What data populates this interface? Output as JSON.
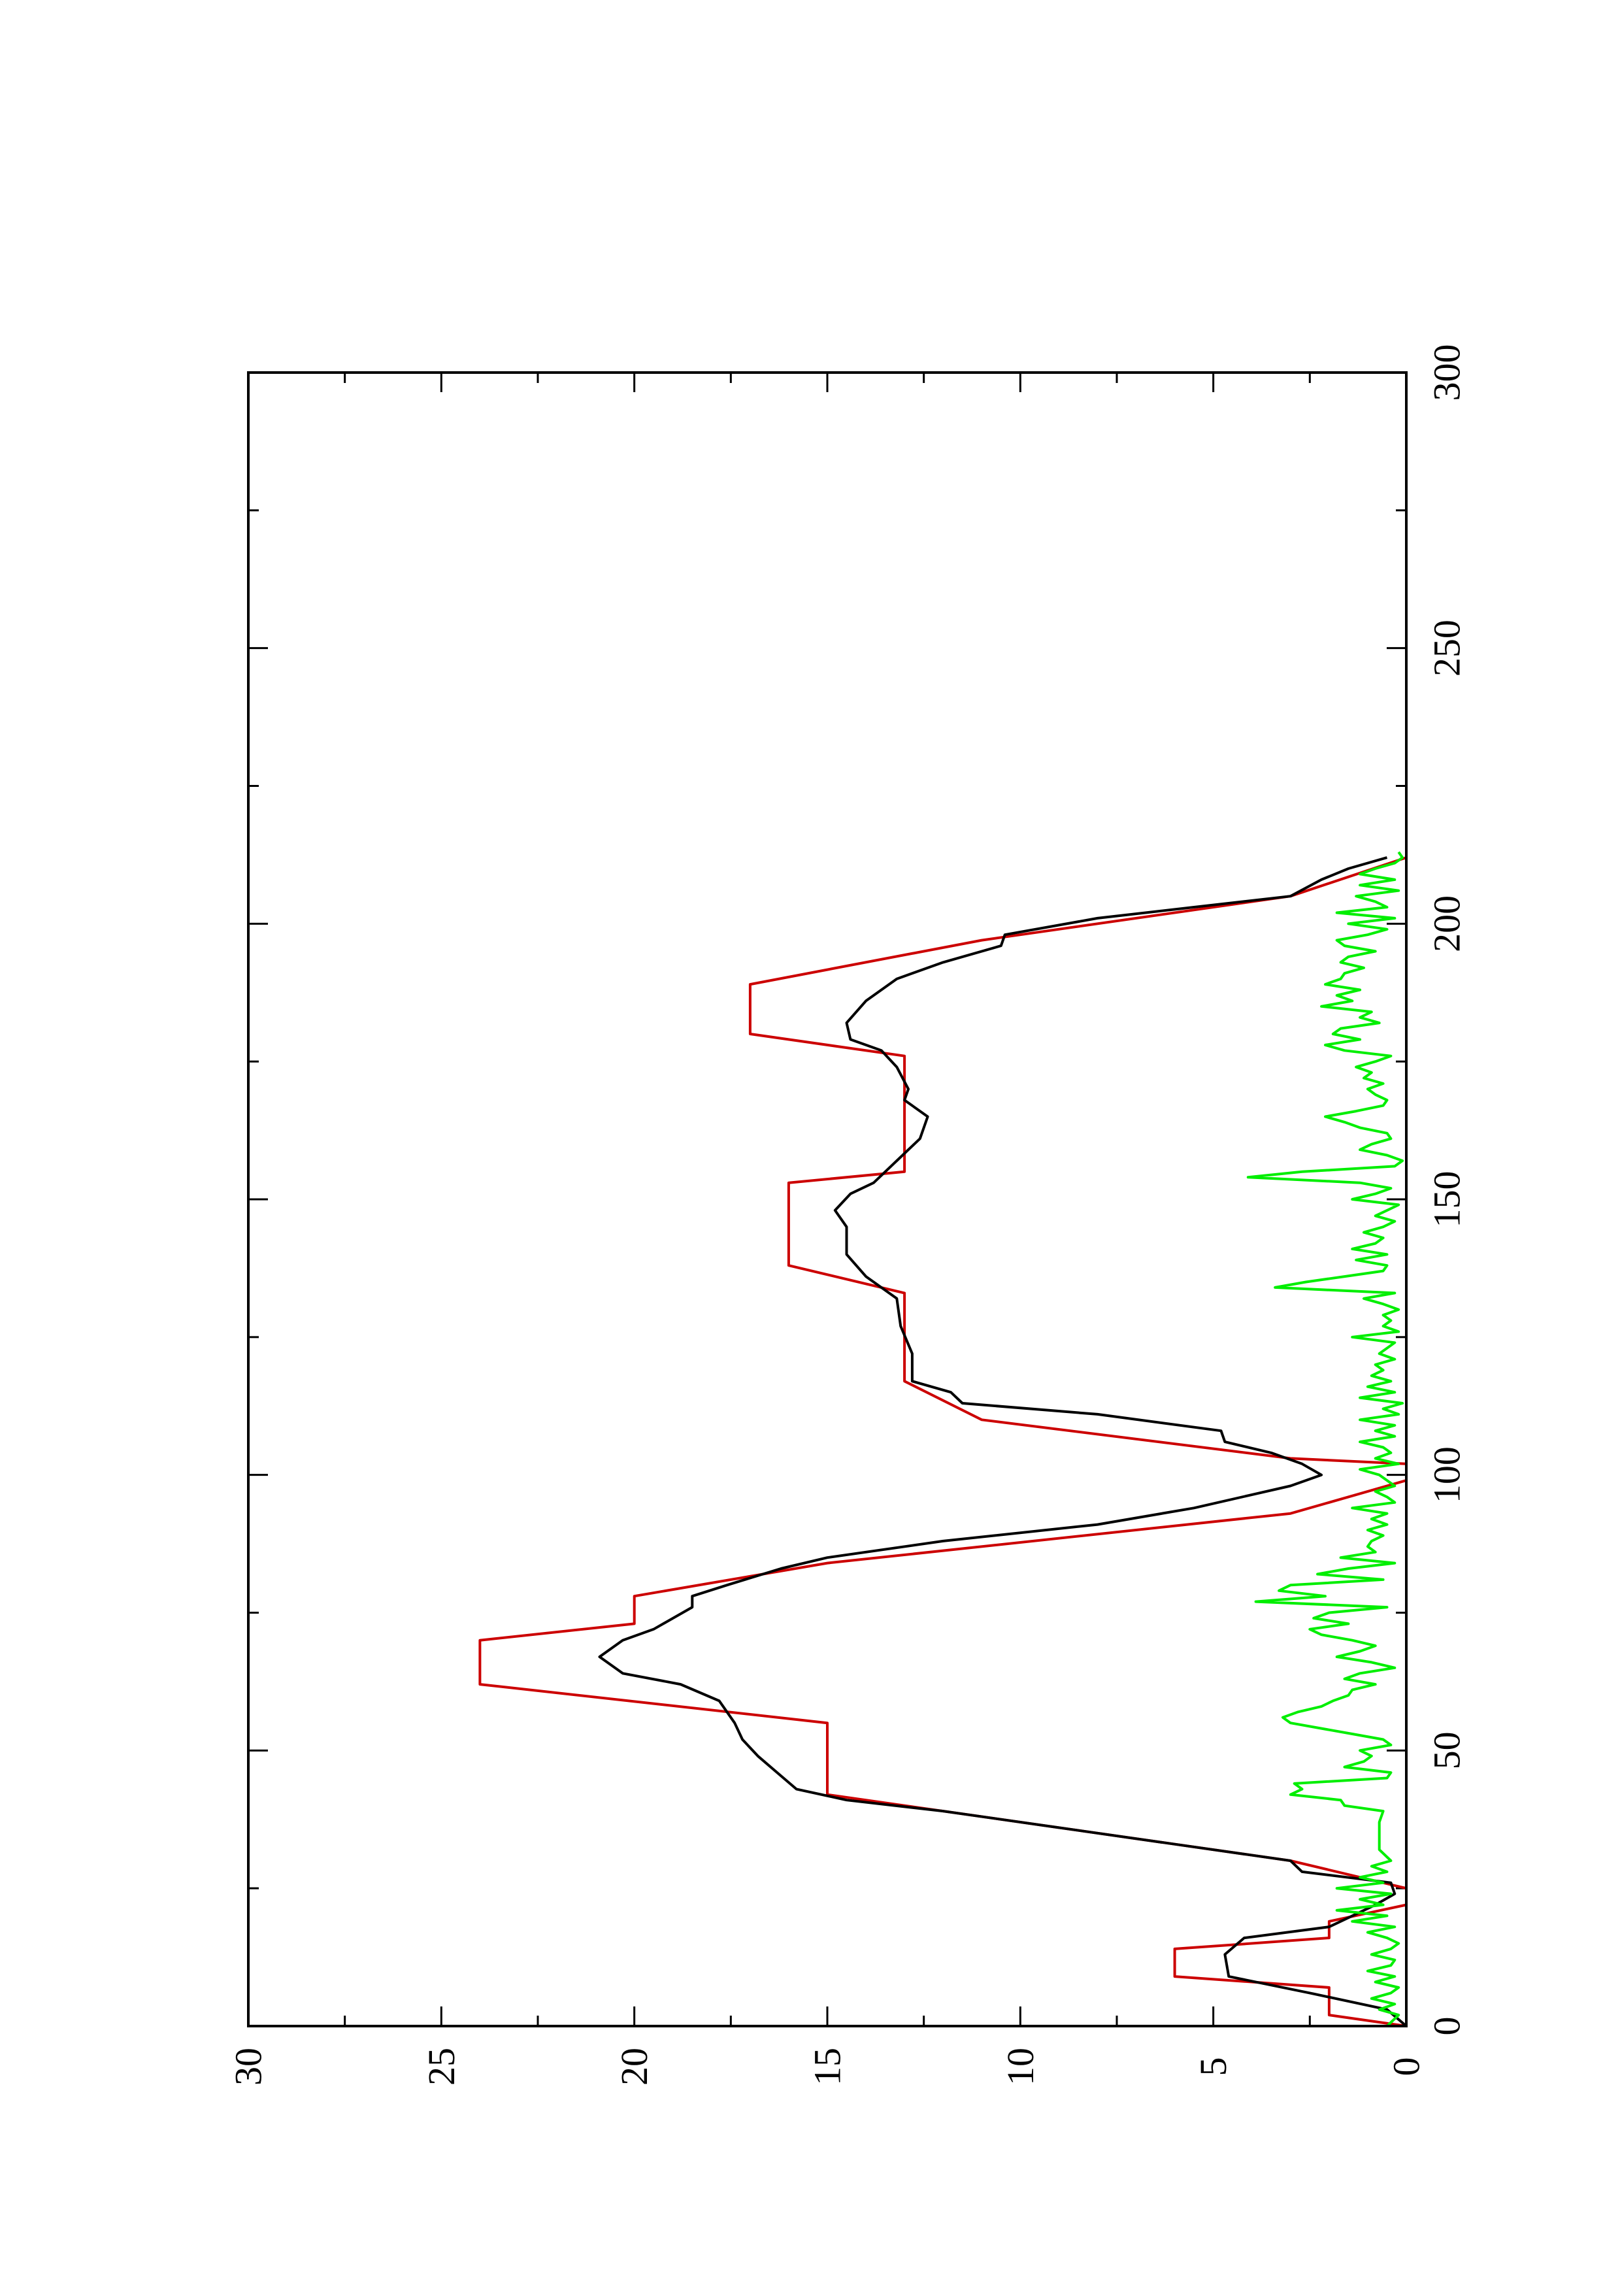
{
  "chart_data": {
    "type": "line",
    "title": "",
    "xlabel": "",
    "ylabel": "",
    "xlim": [
      0,
      300
    ],
    "ylim": [
      0,
      30
    ],
    "x_ticks": [
      0,
      50,
      100,
      150,
      200,
      250,
      300
    ],
    "y_ticks": [
      0,
      5,
      10,
      15,
      20,
      25,
      30
    ],
    "x_minor_step": 25,
    "y_minor_step": 2.5,
    "orientation": "rotated-90-ccw",
    "grid": false,
    "legend": "none",
    "series": [
      {
        "color": "#cc0000",
        "points": [
          [
            0,
            0
          ],
          [
            2,
            2
          ],
          [
            7,
            2
          ],
          [
            9,
            6
          ],
          [
            14,
            6
          ],
          [
            16,
            2
          ],
          [
            19,
            2
          ],
          [
            22,
            0
          ],
          [
            25,
            0
          ],
          [
            30,
            3
          ],
          [
            42,
            15
          ],
          [
            55,
            15
          ],
          [
            62,
            24
          ],
          [
            70,
            24
          ],
          [
            73,
            20
          ],
          [
            78,
            20
          ],
          [
            84,
            15
          ],
          [
            93,
            3
          ],
          [
            99,
            0
          ],
          [
            102,
            0
          ],
          [
            103,
            3
          ],
          [
            110,
            11
          ],
          [
            117,
            13
          ],
          [
            133,
            13
          ],
          [
            138,
            16
          ],
          [
            153,
            16
          ],
          [
            155,
            13
          ],
          [
            176,
            13
          ],
          [
            180,
            17
          ],
          [
            189,
            17
          ],
          [
            197,
            11
          ],
          [
            205,
            3
          ],
          [
            212,
            0
          ]
        ]
      },
      {
        "color": "#000000",
        "points": [
          [
            0,
            0
          ],
          [
            3,
            0.5
          ],
          [
            6,
            2.5
          ],
          [
            9,
            4.6
          ],
          [
            13,
            4.7
          ],
          [
            16,
            4.2
          ],
          [
            18,
            2
          ],
          [
            19,
            1.7
          ],
          [
            22,
            0.8
          ],
          [
            24,
            0.3
          ],
          [
            26,
            0.4
          ],
          [
            28,
            2.7
          ],
          [
            30,
            3
          ],
          [
            33,
            6
          ],
          [
            36,
            9
          ],
          [
            39,
            12
          ],
          [
            41,
            14.5
          ],
          [
            43,
            15.8
          ],
          [
            46,
            16.3
          ],
          [
            49,
            16.8
          ],
          [
            52,
            17.2
          ],
          [
            55,
            17.4
          ],
          [
            59,
            17.8
          ],
          [
            62,
            18.8
          ],
          [
            64,
            20.3
          ],
          [
            67,
            20.9
          ],
          [
            70,
            20.3
          ],
          [
            72,
            19.5
          ],
          [
            76,
            18.5
          ],
          [
            78,
            18.5
          ],
          [
            80,
            17.6
          ],
          [
            83,
            16.2
          ],
          [
            85,
            15
          ],
          [
            88,
            12
          ],
          [
            91,
            8
          ],
          [
            94,
            5.5
          ],
          [
            98,
            3
          ],
          [
            100,
            2.2
          ],
          [
            102,
            2.7
          ],
          [
            104,
            3.5
          ],
          [
            106,
            4.7
          ],
          [
            108,
            4.8
          ],
          [
            111,
            8
          ],
          [
            113,
            11.5
          ],
          [
            115,
            11.8
          ],
          [
            117,
            12.8
          ],
          [
            122,
            12.8
          ],
          [
            127,
            13.1
          ],
          [
            132,
            13.2
          ],
          [
            136,
            14
          ],
          [
            140,
            14.5
          ],
          [
            145,
            14.5
          ],
          [
            148,
            14.8
          ],
          [
            151,
            14.4
          ],
          [
            153,
            13.8
          ],
          [
            157,
            13.2
          ],
          [
            161,
            12.6
          ],
          [
            165,
            12.4
          ],
          [
            168,
            13
          ],
          [
            170,
            12.9
          ],
          [
            174,
            13.2
          ],
          [
            177,
            13.6
          ],
          [
            179,
            14.4
          ],
          [
            182,
            14.5
          ],
          [
            186,
            14
          ],
          [
            190,
            13.2
          ],
          [
            193,
            12
          ],
          [
            196,
            10.5
          ],
          [
            198,
            10.4
          ],
          [
            201,
            8
          ],
          [
            203,
            5.5
          ],
          [
            205,
            3
          ],
          [
            208,
            2.2
          ],
          [
            210,
            1.5
          ],
          [
            212,
            0.5
          ]
        ]
      },
      {
        "color": "#00ee00",
        "points": [
          [
            0,
            0.5
          ],
          [
            2,
            0.2
          ],
          [
            3,
            0.7
          ],
          [
            4,
            0.3
          ],
          [
            5,
            0.9
          ],
          [
            6,
            0.4
          ],
          [
            7,
            0.2
          ],
          [
            8,
            0.8
          ],
          [
            9,
            0.3
          ],
          [
            10,
            1
          ],
          [
            11,
            0.4
          ],
          [
            12,
            0.3
          ],
          [
            13,
            0.9
          ],
          [
            14,
            0.4
          ],
          [
            15,
            0.2
          ],
          [
            16,
            0.5
          ],
          [
            17,
            1
          ],
          [
            18,
            0.3
          ],
          [
            19,
            1.4
          ],
          [
            20,
            0.5
          ],
          [
            21,
            1.8
          ],
          [
            22,
            0.6
          ],
          [
            23,
            1.2
          ],
          [
            24,
            0.4
          ],
          [
            25,
            1.8
          ],
          [
            26,
            0.6
          ],
          [
            27,
            1.2
          ],
          [
            28,
            0.5
          ],
          [
            29,
            0.9
          ],
          [
            30,
            0.4
          ],
          [
            32,
            0.7
          ],
          [
            35,
            0.7
          ],
          [
            37,
            0.7
          ],
          [
            39,
            0.6
          ],
          [
            40,
            1.6
          ],
          [
            41,
            1.7
          ],
          [
            42,
            3
          ],
          [
            43,
            2.7
          ],
          [
            44,
            2.9
          ],
          [
            45,
            0.5
          ],
          [
            46,
            0.4
          ],
          [
            47,
            1.6
          ],
          [
            48,
            1.1
          ],
          [
            49,
            0.9
          ],
          [
            50,
            1.2
          ],
          [
            51,
            0.4
          ],
          [
            52,
            0.6
          ],
          [
            53,
            1.4
          ],
          [
            54,
            2.2
          ],
          [
            55,
            3
          ],
          [
            56,
            3.2
          ],
          [
            57,
            2.8
          ],
          [
            58,
            2.2
          ],
          [
            59,
            1.9
          ],
          [
            60,
            1.5
          ],
          [
            61,
            1.4
          ],
          [
            62,
            0.8
          ],
          [
            63,
            1.6
          ],
          [
            64,
            1.2
          ],
          [
            65,
            0.3
          ],
          [
            66,
            0.9
          ],
          [
            67,
            1.8
          ],
          [
            68,
            1.2
          ],
          [
            69,
            0.8
          ],
          [
            70,
            1.4
          ],
          [
            71,
            2.2
          ],
          [
            72,
            2.5
          ],
          [
            73,
            1.5
          ],
          [
            74,
            2.4
          ],
          [
            75,
            2
          ],
          [
            76,
            0.5
          ],
          [
            77,
            3.9
          ],
          [
            78,
            2.1
          ],
          [
            79,
            3.3
          ],
          [
            80,
            3
          ],
          [
            81,
            0.6
          ],
          [
            82,
            2.3
          ],
          [
            83,
            1.5
          ],
          [
            84,
            0.3
          ],
          [
            85,
            1.7
          ],
          [
            86,
            0.8
          ],
          [
            87,
            1
          ],
          [
            88,
            0.9
          ],
          [
            89,
            0.6
          ],
          [
            90,
            1
          ],
          [
            91,
            0.5
          ],
          [
            92,
            0.9
          ],
          [
            93,
            0.5
          ],
          [
            94,
            1.4
          ],
          [
            95,
            0.3
          ],
          [
            96,
            0.5
          ],
          [
            97,
            0.8
          ],
          [
            98,
            0.3
          ],
          [
            100,
            0.7
          ],
          [
            101,
            1.2
          ],
          [
            102,
            0.2
          ],
          [
            103,
            0.8
          ],
          [
            104,
            0.4
          ],
          [
            105,
            0.6
          ],
          [
            106,
            1.2
          ],
          [
            107,
            0.3
          ],
          [
            108,
            0.8
          ],
          [
            109,
            0.3
          ],
          [
            110,
            1.2
          ],
          [
            111,
            0.2
          ],
          [
            112,
            0.6
          ],
          [
            113,
            0.1
          ],
          [
            114,
            1.2
          ],
          [
            115,
            0.3
          ],
          [
            116,
            1
          ],
          [
            117,
            0.4
          ],
          [
            118,
            0.9
          ],
          [
            119,
            0.6
          ],
          [
            120,
            0.8
          ],
          [
            121,
            0.3
          ],
          [
            122,
            0.7
          ],
          [
            123,
            0.5
          ],
          [
            124,
            0.3
          ],
          [
            125,
            1.4
          ],
          [
            126,
            0.2
          ],
          [
            127,
            0.6
          ],
          [
            128,
            0.4
          ],
          [
            129,
            0.6
          ],
          [
            130,
            0.2
          ],
          [
            131,
            0.6
          ],
          [
            132,
            1.1
          ],
          [
            133,
            0.3
          ],
          [
            134,
            3.4
          ],
          [
            135,
            2.6
          ],
          [
            136,
            1.6
          ],
          [
            137,
            0.6
          ],
          [
            138,
            0.5
          ],
          [
            139,
            1.3
          ],
          [
            140,
            0.5
          ],
          [
            141,
            1.4
          ],
          [
            142,
            0.8
          ],
          [
            143,
            0.6
          ],
          [
            144,
            1.1
          ],
          [
            145,
            0.6
          ],
          [
            146,
            0.3
          ],
          [
            147,
            0.8
          ],
          [
            148,
            0.5
          ],
          [
            149,
            0.2
          ],
          [
            150,
            1.4
          ],
          [
            151,
            0.8
          ],
          [
            152,
            0.4
          ],
          [
            153,
            1.2
          ],
          [
            154,
            4.1
          ],
          [
            155,
            2.7
          ],
          [
            156,
            0.3
          ],
          [
            157,
            0.1
          ],
          [
            158,
            0.5
          ],
          [
            159,
            1.2
          ],
          [
            160,
            0.9
          ],
          [
            161,
            0.4
          ],
          [
            162,
            0.5
          ],
          [
            163,
            1.2
          ],
          [
            164,
            1.6
          ],
          [
            165,
            2.1
          ],
          [
            166,
            1.3
          ],
          [
            167,
            0.6
          ],
          [
            168,
            0.5
          ],
          [
            169,
            0.8
          ],
          [
            170,
            1
          ],
          [
            171,
            0.6
          ],
          [
            172,
            1.1
          ],
          [
            173,
            0.9
          ],
          [
            174,
            1.3
          ],
          [
            175,
            0.8
          ],
          [
            176,
            0.4
          ],
          [
            177,
            1.6
          ],
          [
            178,
            2.1
          ],
          [
            179,
            1.2
          ],
          [
            180,
            1.9
          ],
          [
            181,
            1.7
          ],
          [
            182,
            0.7
          ],
          [
            183,
            1.2
          ],
          [
            184,
            0.9
          ],
          [
            185,
            2.2
          ],
          [
            186,
            1.4
          ],
          [
            187,
            1.8
          ],
          [
            188,
            1.2
          ],
          [
            189,
            2.1
          ],
          [
            190,
            1.7
          ],
          [
            191,
            1.6
          ],
          [
            192,
            1.1
          ],
          [
            193,
            1.7
          ],
          [
            194,
            1.5
          ],
          [
            195,
            0.8
          ],
          [
            196,
            1.6
          ],
          [
            197,
            1.8
          ],
          [
            198,
            1
          ],
          [
            199,
            0.5
          ],
          [
            200,
            1.5
          ],
          [
            201,
            0.3
          ],
          [
            202,
            1.8
          ],
          [
            203,
            0.5
          ],
          [
            204,
            0.8
          ],
          [
            205,
            1.3
          ],
          [
            206,
            0.2
          ],
          [
            207,
            1.2
          ],
          [
            208,
            0.3
          ],
          [
            209,
            1.2
          ],
          [
            210,
            0.8
          ],
          [
            211,
            0.3
          ],
          [
            212,
            0.1
          ],
          [
            213,
            0.2
          ]
        ]
      }
    ]
  }
}
